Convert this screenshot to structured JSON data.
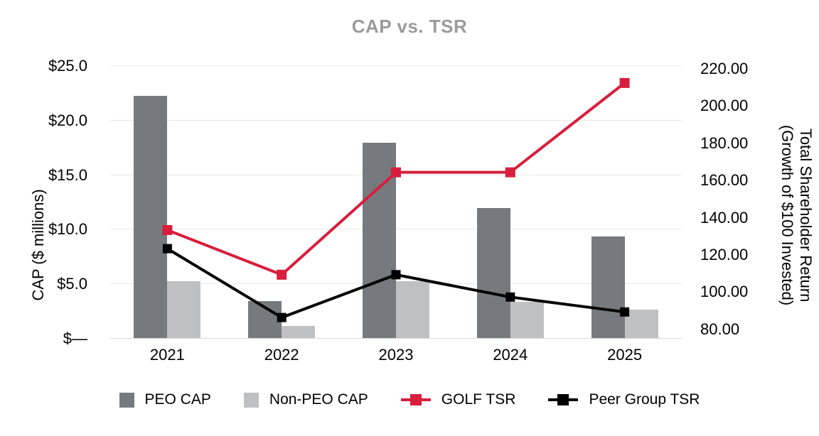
{
  "title": "CAP vs. TSR",
  "colors": {
    "title_gray": "#9b9b9b",
    "peo_bar": "#76797d",
    "non_peo_bar": "#bfc0c2",
    "golf_red": "#d71e3d",
    "peer_black": "#000000",
    "gridline": "#e8e8e8",
    "axis_line": "#d9d9d9"
  },
  "chart_data": {
    "type": "combo-bar-line",
    "grid": true,
    "legend_position": "bottom",
    "categories": [
      "2021",
      "2022",
      "2023",
      "2024",
      "2025"
    ],
    "bar_series": [
      {
        "name": "PEO CAP",
        "axis": "left",
        "color": "#76797d",
        "values": [
          22.2,
          3.4,
          17.9,
          11.9,
          9.3
        ]
      },
      {
        "name": "Non-PEO CAP",
        "axis": "left",
        "color": "#bfc0c2",
        "values": [
          5.2,
          1.1,
          5.2,
          3.3,
          2.6
        ]
      }
    ],
    "line_series": [
      {
        "name": "GOLF TSR",
        "axis": "right",
        "color": "#d71e3d",
        "marker": "square",
        "marker_size": 14,
        "values": [
          133,
          109,
          164,
          164,
          212
        ]
      },
      {
        "name": "Peer Group TSR",
        "axis": "right",
        "color": "#000000",
        "marker": "square",
        "marker_size": 13,
        "values": [
          123,
          86,
          109,
          97,
          89
        ]
      }
    ],
    "left_axis": {
      "title": "CAP ($ millions)",
      "min": 0,
      "max": 25,
      "ticks": [
        {
          "value": 0,
          "label": "$—"
        },
        {
          "value": 5,
          "label": "$5.0"
        },
        {
          "value": 10,
          "label": "$10.0"
        },
        {
          "value": 15,
          "label": "$15.0"
        },
        {
          "value": 20,
          "label": "$20.0"
        },
        {
          "value": 25,
          "label": "$25.0"
        }
      ]
    },
    "right_axis": {
      "title_line1": "Total Shareholder Return",
      "title_line2": "(Growth of $100 Invested)",
      "min": 75,
      "ticks": [
        {
          "value": 80,
          "label": "80.00"
        },
        {
          "value": 100,
          "label": "100.00"
        },
        {
          "value": 120,
          "label": "120.00"
        },
        {
          "value": 140,
          "label": "140.00"
        },
        {
          "value": 160,
          "label": "160.00"
        },
        {
          "value": 180,
          "label": "180.00"
        },
        {
          "value": 200,
          "label": "200.00"
        },
        {
          "value": 220,
          "label": "220.00"
        }
      ]
    }
  }
}
